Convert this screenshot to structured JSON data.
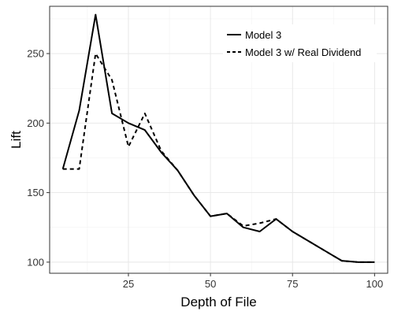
{
  "chart_data": {
    "type": "line",
    "title": "",
    "xlabel": "Depth of File",
    "ylabel": "Lift",
    "xlim": [
      1,
      104
    ],
    "ylim": [
      92,
      284
    ],
    "x_ticks": [
      25,
      50,
      75,
      100
    ],
    "y_ticks": [
      100,
      150,
      200,
      250
    ],
    "grid": true,
    "legend_position": "top-right",
    "series": [
      {
        "name": "Model 3",
        "dash": "solid",
        "color": "#000000",
        "x": [
          5,
          10,
          15,
          20,
          25,
          30,
          35,
          40,
          45,
          50,
          55,
          60,
          65,
          70,
          75,
          80,
          85,
          90,
          95,
          100
        ],
        "y": [
          167,
          209,
          278,
          207,
          200,
          195,
          179,
          166,
          148,
          133,
          135,
          125,
          122,
          131,
          122,
          115,
          108,
          101,
          100,
          100
        ]
      },
      {
        "name": "Model 3 w/ Real Dividend",
        "dash": "dashed",
        "color": "#000000",
        "x": [
          5,
          10,
          15,
          20,
          25,
          30,
          35,
          40,
          45,
          50,
          55,
          60,
          65,
          70,
          75,
          80,
          85,
          90,
          95,
          100
        ],
        "y": [
          167,
          167,
          250,
          231,
          183,
          207,
          180,
          166,
          148,
          133,
          135,
          126,
          128,
          131,
          122,
          115,
          108,
          101,
          100,
          100
        ]
      }
    ]
  }
}
